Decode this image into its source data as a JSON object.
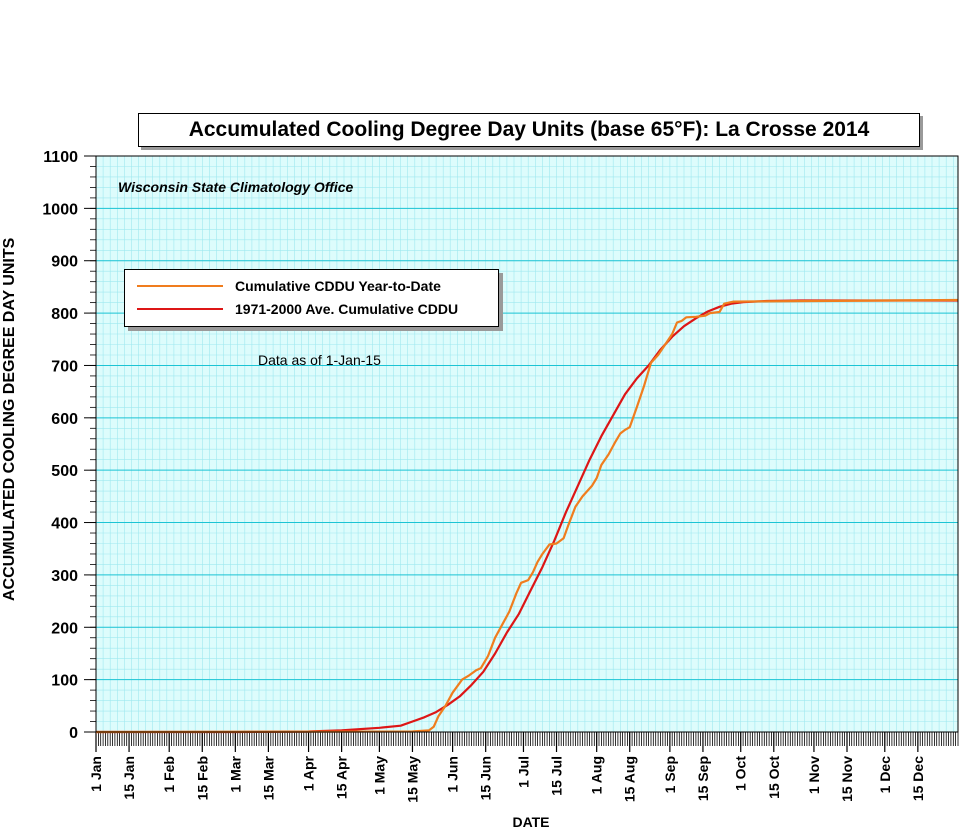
{
  "chart_data": {
    "type": "line",
    "title": "Accumulated Cooling Degree Day Units (base 65°F): La Crosse 2014",
    "source": "Wisconsin State Climatology Office",
    "note": "Data as of 1-Jan-15",
    "xlabel": "DATE",
    "ylabel": "ACCUMULATED COOLING DEGREE DAY UNITS",
    "ylim": [
      0,
      1100
    ],
    "yticks": [
      0,
      100,
      200,
      300,
      400,
      500,
      600,
      700,
      800,
      900,
      1000,
      1100
    ],
    "xlim": [
      1,
      366
    ],
    "x_unit": "day of year",
    "xticks": [
      {
        "label": "1 Jan",
        "day": 1
      },
      {
        "label": "15 Jan",
        "day": 15
      },
      {
        "label": "1 Feb",
        "day": 32
      },
      {
        "label": "15 Feb",
        "day": 46
      },
      {
        "label": "1 Mar",
        "day": 60
      },
      {
        "label": "15 Mar",
        "day": 74
      },
      {
        "label": "1 Apr",
        "day": 91
      },
      {
        "label": "15 Apr",
        "day": 105
      },
      {
        "label": "1 May",
        "day": 121
      },
      {
        "label": "15 May",
        "day": 135
      },
      {
        "label": "1 Jun",
        "day": 152
      },
      {
        "label": "15 Jun",
        "day": 166
      },
      {
        "label": "1 Jul",
        "day": 182
      },
      {
        "label": "15 Jul",
        "day": 196
      },
      {
        "label": "1 Aug",
        "day": 213
      },
      {
        "label": "15 Aug",
        "day": 227
      },
      {
        "label": "1 Sep",
        "day": 244
      },
      {
        "label": "15 Sep",
        "day": 258
      },
      {
        "label": "1 Oct",
        "day": 274
      },
      {
        "label": "15 Oct",
        "day": 288
      },
      {
        "label": "1 Nov",
        "day": 305
      },
      {
        "label": "15 Nov",
        "day": 319
      },
      {
        "label": "1 Dec",
        "day": 335
      },
      {
        "label": "15 Dec",
        "day": 349
      }
    ],
    "grid": true,
    "legend_position": "top-left",
    "series": [
      {
        "name": "Cumulative CDDU Year-to-Date",
        "color": "#f07d1e",
        "points": [
          [
            1,
            0
          ],
          [
            135,
            1
          ],
          [
            142,
            3
          ],
          [
            144,
            10
          ],
          [
            146,
            30
          ],
          [
            149,
            50
          ],
          [
            152,
            75
          ],
          [
            156,
            100
          ],
          [
            159,
            108
          ],
          [
            162,
            118
          ],
          [
            164,
            122
          ],
          [
            167,
            145
          ],
          [
            170,
            180
          ],
          [
            173,
            205
          ],
          [
            176,
            230
          ],
          [
            179,
            265
          ],
          [
            181,
            285
          ],
          [
            184,
            290
          ],
          [
            186,
            305
          ],
          [
            188,
            325
          ],
          [
            190,
            340
          ],
          [
            193,
            358
          ],
          [
            196,
            360
          ],
          [
            199,
            370
          ],
          [
            201,
            395
          ],
          [
            204,
            430
          ],
          [
            207,
            450
          ],
          [
            211,
            470
          ],
          [
            213,
            485
          ],
          [
            215,
            510
          ],
          [
            218,
            530
          ],
          [
            221,
            555
          ],
          [
            223,
            570
          ],
          [
            225,
            577
          ],
          [
            227,
            582
          ],
          [
            230,
            620
          ],
          [
            233,
            660
          ],
          [
            236,
            705
          ],
          [
            239,
            720
          ],
          [
            242,
            740
          ],
          [
            245,
            760
          ],
          [
            247,
            782
          ],
          [
            249,
            785
          ],
          [
            251,
            792
          ],
          [
            255,
            793
          ],
          [
            259,
            795
          ],
          [
            261,
            800
          ],
          [
            265,
            802
          ],
          [
            267,
            818
          ],
          [
            271,
            822
          ],
          [
            366,
            825
          ]
        ]
      },
      {
        "name": "1971-2000 Ave. Cumulative CDDU",
        "color": "#dd1616",
        "points": [
          [
            1,
            0
          ],
          [
            60,
            0
          ],
          [
            91,
            1
          ],
          [
            105,
            3
          ],
          [
            121,
            8
          ],
          [
            130,
            12
          ],
          [
            135,
            20
          ],
          [
            140,
            28
          ],
          [
            145,
            38
          ],
          [
            150,
            52
          ],
          [
            155,
            68
          ],
          [
            160,
            90
          ],
          [
            165,
            115
          ],
          [
            170,
            150
          ],
          [
            175,
            190
          ],
          [
            180,
            225
          ],
          [
            185,
            270
          ],
          [
            190,
            315
          ],
          [
            195,
            365
          ],
          [
            200,
            420
          ],
          [
            205,
            470
          ],
          [
            210,
            520
          ],
          [
            215,
            565
          ],
          [
            220,
            605
          ],
          [
            225,
            645
          ],
          [
            230,
            675
          ],
          [
            235,
            700
          ],
          [
            240,
            730
          ],
          [
            245,
            755
          ],
          [
            250,
            775
          ],
          [
            255,
            790
          ],
          [
            260,
            803
          ],
          [
            265,
            812
          ],
          [
            270,
            818
          ],
          [
            275,
            821
          ],
          [
            285,
            823
          ],
          [
            300,
            824
          ],
          [
            366,
            824
          ]
        ]
      }
    ]
  }
}
